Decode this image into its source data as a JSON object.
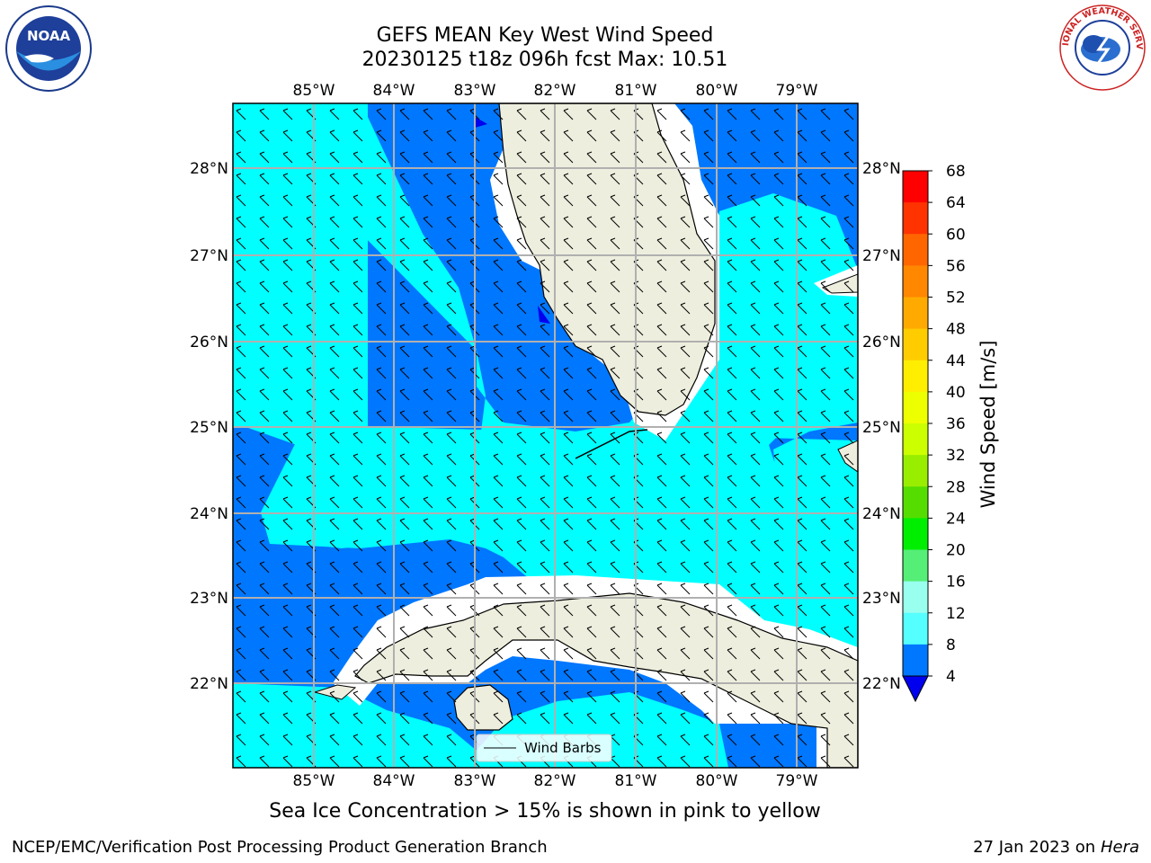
{
  "title": {
    "line1": "GEFS MEAN Key West Wind Speed",
    "line2": "20230125 t18z 096h fcst   Max: 10.51"
  },
  "map": {
    "lon_labels": [
      "85°W",
      "84°W",
      "83°W",
      "82°W",
      "81°W",
      "80°W",
      "79°W"
    ],
    "lat_labels": [
      "28°N",
      "27°N",
      "26°N",
      "25°N",
      "24°N",
      "23°N",
      "22°N"
    ],
    "legend_label": "Wind Barbs",
    "colors": {
      "land": "#eeeede",
      "ocean_low": "#0077ff",
      "ocean_mid": "#00ffff",
      "ocean_very_low": "#0000ee",
      "grid": "#b0b0b0"
    }
  },
  "colorbar": {
    "label": "Wind Speed [m/s]",
    "ticks": [
      "68",
      "64",
      "60",
      "56",
      "52",
      "48",
      "44",
      "40",
      "36",
      "32",
      "28",
      "24",
      "20",
      "16",
      "12",
      "8",
      "4"
    ],
    "colors": [
      "#ff0000",
      "#ff3300",
      "#ff6600",
      "#ff8800",
      "#ffaa00",
      "#ffcc00",
      "#ffee00",
      "#eeff00",
      "#ccff00",
      "#99ee00",
      "#55dd00",
      "#00ee00",
      "#55ee77",
      "#99ffee",
      "#55ffff",
      "#00ffff",
      "#0077ff"
    ],
    "under_color": "#0000ee"
  },
  "subtitle": "Sea Ice Concentration > 15% is shown in pink to yellow",
  "footer": {
    "left": "NCEP/EMC/Verification Post Processing Product Generation Branch",
    "right_date": "27 Jan 2023 on ",
    "right_host": "Hera"
  },
  "logos": {
    "noaa_text": "NOAA",
    "nws_text": "NATIONAL WEATHER SERVICE"
  }
}
